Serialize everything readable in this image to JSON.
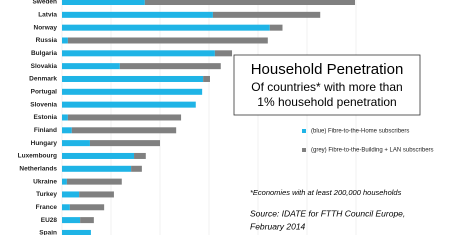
{
  "chart_data": {
    "type": "bar",
    "orientation": "horizontal",
    "stacked": true,
    "title": "Household Penetration",
    "subtitle": [
      "Of countries* with more than",
      "1% household penetration"
    ],
    "categories": [
      "Sweden",
      "Latvia",
      "Norway",
      "Russia",
      "Bulgaria",
      "Slovakia",
      "Denmark",
      "Portugal",
      "Slovenia",
      "Estonia",
      "Finland",
      "Hungary",
      "Luxembourg",
      "Netherlands",
      "Ukraine",
      "Turkey",
      "France",
      "EU28",
      "Spain"
    ],
    "series": [
      {
        "name": "(blue) Fibre-to-the-Home subscribers",
        "color": "#1fb4e6",
        "values": [
          16.9,
          30.8,
          42.4,
          1.2,
          31.2,
          11.8,
          28.8,
          28.6,
          27.3,
          1.2,
          2.0,
          5.7,
          14.7,
          14.1,
          1.0,
          3.5,
          1.6,
          3.7,
          5.9
        ]
      },
      {
        "name": "(grey) Fibre-to-the-Building + LAN subscribers",
        "color": "#808080",
        "values": [
          42.9,
          21.9,
          2.6,
          40.8,
          3.5,
          20.6,
          1.4,
          0,
          0,
          23.1,
          21.3,
          14.3,
          2.4,
          2.2,
          11.2,
          7.1,
          7.0,
          2.8,
          0
        ]
      }
    ],
    "xlim": [
      0,
      60
    ],
    "xticks": [
      0,
      10,
      20,
      30,
      40,
      50,
      60
    ],
    "grid": true,
    "note": "*Economies with at least 200,000 households",
    "source": [
      "Source: IDATE for FTTH Council Europe,",
      "February 2014"
    ]
  }
}
